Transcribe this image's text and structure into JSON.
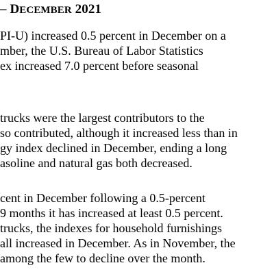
{
  "heading": {
    "lead": "– D",
    "smallcaps": "ECEMBER",
    "year": " 2021"
  },
  "paragraphs": [
    [
      "PI-U) increased 0.5 percent in December on a",
      "mber, the U.S. Bureau of Labor Statistics",
      "ex increased 7.0 percent before seasonal"
    ],
    [
      " trucks were the largest contributors to the",
      "so contributed, although it increased less than in",
      "gy index declined in December, ending a long",
      "asoline and natural gas both decreased."
    ],
    [
      "cent in December following a 0.5-percent",
      " 9 months it has increased at least 0.5 percent.",
      "trucks, the indexes for household furnishings",
      "all increased in December. As in November, the",
      "among the few to decline over the month."
    ]
  ]
}
